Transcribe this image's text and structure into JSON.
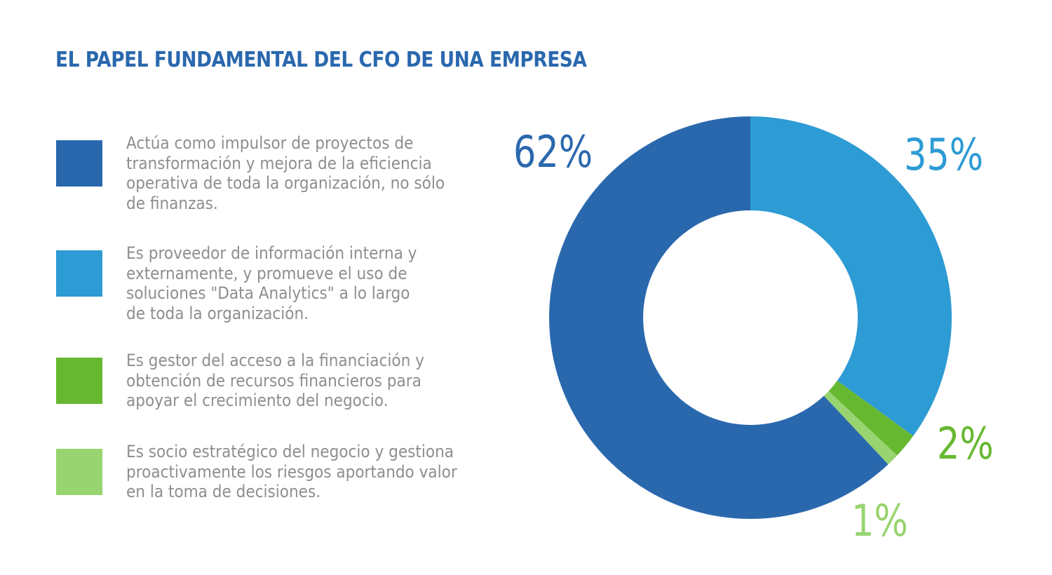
{
  "title": "EL PAPEL FUNDAMENTAL DEL CFO DE UNA EMPRESA",
  "legend": [
    {
      "color": "#2a68ae",
      "text": "Actúa como impulsor de proyectos de\ntransformación y mejora de la eficiencia\noperativa de toda la organización, no sólo\nde finanzas."
    },
    {
      "color": "#2d9bd4",
      "text": "Es proveedor de información interna y\nexternamente, y promueve el uso de\nsoluciones \"Data Analytics\" a lo largo\nde toda la organización."
    },
    {
      "color": "#67b831",
      "text": "Es gestor del acceso a la financiación y\nobtención de recursos financieros para\napoyar el crecimiento del negocio."
    },
    {
      "color": "#98d46f",
      "text": "Es socio estratégico del negocio y gestiona\nproactivamente los riesgos aportando valor\nen la toma de decisiones."
    }
  ],
  "labels": {
    "s0": "62%",
    "s1": "35%",
    "s2": "2%",
    "s3": "1%"
  },
  "chart_data": {
    "type": "pie",
    "variant": "donut",
    "title": "EL PAPEL FUNDAMENTAL DEL CFO DE UNA EMPRESA",
    "categories": [
      "Actúa como impulsor de proyectos de transformación y mejora de la eficiencia operativa de toda la organización, no sólo de finanzas.",
      "Es proveedor de información interna y externamente, y promueve el uso de soluciones \"Data Analytics\" a lo largo de toda la organización.",
      "Es gestor del acceso a la financiación y obtención de recursos financieros para apoyar el crecimiento del negocio.",
      "Es socio estratégico del negocio y gestiona proactivamente los riesgos aportando valor en la toma de decisiones."
    ],
    "values": [
      62,
      35,
      2,
      1
    ],
    "value_labels": [
      "62%",
      "35%",
      "2%",
      "1%"
    ],
    "colors": [
      "#2a68ae",
      "#2d9bd4",
      "#67b831",
      "#98d46f"
    ],
    "draw_order": [
      1,
      2,
      3,
      0
    ],
    "start_angle_deg": 0,
    "direction": "clockwise",
    "legend_position": "left",
    "unit": "%"
  }
}
